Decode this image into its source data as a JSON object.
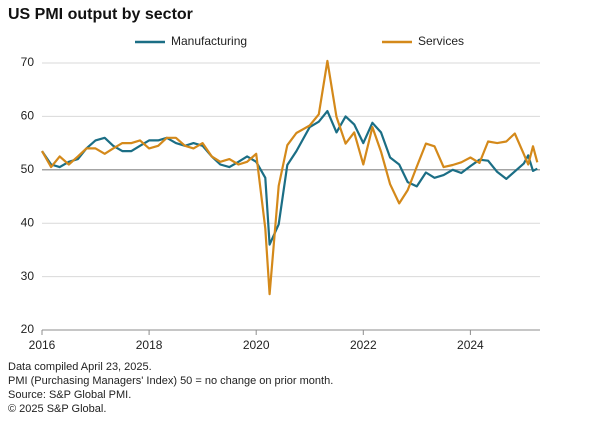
{
  "chart_data": {
    "type": "line",
    "title": "US PMI output by sector",
    "x": [
      2016.0,
      2016.17,
      2016.33,
      2016.5,
      2016.67,
      2016.83,
      2017.0,
      2017.17,
      2017.33,
      2017.5,
      2017.67,
      2017.83,
      2018.0,
      2018.17,
      2018.33,
      2018.5,
      2018.67,
      2018.83,
      2019.0,
      2019.17,
      2019.33,
      2019.5,
      2019.67,
      2019.83,
      2020.0,
      2020.17,
      2020.25,
      2020.42,
      2020.58,
      2020.75,
      2021.0,
      2021.17,
      2021.33,
      2021.5,
      2021.67,
      2021.83,
      2022.0,
      2022.17,
      2022.33,
      2022.5,
      2022.67,
      2022.83,
      2023.0,
      2023.17,
      2023.33,
      2023.5,
      2023.67,
      2023.83,
      2024.0,
      2024.17,
      2024.33,
      2024.5,
      2024.67,
      2024.83,
      2025.0,
      2025.08,
      2025.17,
      2025.25
    ],
    "series": [
      {
        "name": "Manufacturing",
        "color": "#1b6e85",
        "values": [
          53.5,
          51,
          50.5,
          51.5,
          52,
          54,
          55.5,
          56,
          54.5,
          53.5,
          53.5,
          54.5,
          55.5,
          55.5,
          56,
          55,
          54.5,
          55,
          54.5,
          52.5,
          51,
          50.5,
          51.5,
          52.5,
          51.5,
          48.5,
          36,
          39.8,
          50.9,
          53.5,
          58,
          59,
          61,
          57,
          60,
          58.5,
          55,
          58.8,
          57,
          52.3,
          51,
          47.7,
          46.9,
          49.5,
          48.5,
          49,
          50,
          49.4,
          50.7,
          51.9,
          51.7,
          49.6,
          48.3,
          49.7,
          51.2,
          52.7,
          49.8,
          50.2
        ]
      },
      {
        "name": "Services",
        "color": "#d4891a",
        "values": [
          53.5,
          50.5,
          52.5,
          51,
          52.5,
          54,
          54,
          53,
          54,
          55,
          55,
          55.5,
          54,
          54.5,
          56,
          56,
          54.5,
          54,
          55,
          52.5,
          51.5,
          52,
          51,
          51.5,
          53,
          39,
          26.7,
          47,
          54.6,
          56.9,
          58.3,
          60.4,
          70.4,
          59.9,
          54.9,
          57,
          51,
          58,
          53.4,
          47.3,
          43.7,
          46.2,
          50.6,
          54.9,
          54.4,
          50.5,
          50.9,
          51.4,
          52.3,
          51.3,
          55.3,
          55,
          55.3,
          56.8,
          52.9,
          51,
          54.4,
          51.4
        ]
      }
    ],
    "xlim": [
      2016,
      2025.3
    ],
    "xticks": [
      2016,
      2018,
      2020,
      2022,
      2024
    ],
    "ylim": [
      20,
      70
    ],
    "yticks": [
      20,
      30,
      40,
      50,
      60,
      70
    ],
    "grid": true,
    "reference_line": 50,
    "legend": "top",
    "notes": [
      "Data compiled April 23, 2025.",
      "PMI (Purchasing Managers' Index) 50 =  no change on prior month.",
      "Source: S&P Global PMI.",
      "© 2025 S&P Global."
    ]
  }
}
